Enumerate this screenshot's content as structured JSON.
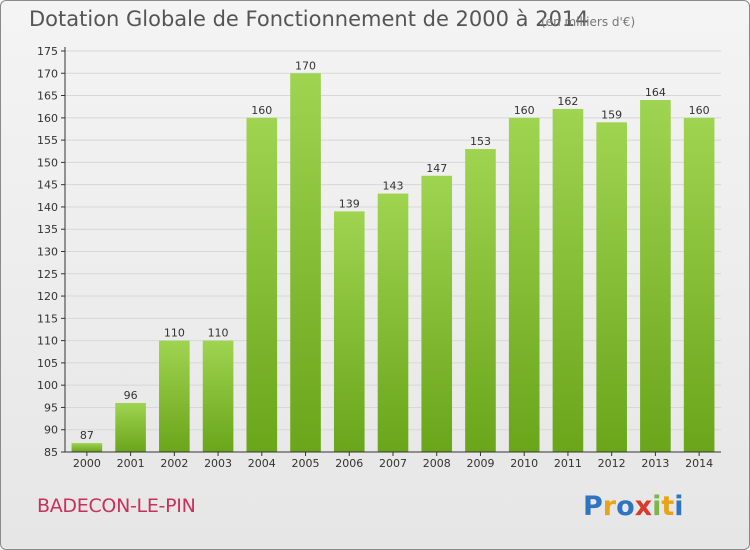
{
  "header": {
    "title": "Dotation Globale de Fonctionnement de 2000 à 2014",
    "subtitle": "(en milliers d'€)"
  },
  "footer": {
    "commune": "BADECON-LE-PIN",
    "logo_text": "Proxiti"
  },
  "colors": {
    "bar_light": "#9fd451",
    "bar_dark": "#6aa51a",
    "axis": "#333333",
    "grid": "#d7d7d7",
    "commune": "#c8315e"
  },
  "chart_data": {
    "type": "bar",
    "title": "Dotation Globale de Fonctionnement de 2000 à 2014",
    "subtitle": "(en milliers d'€)",
    "categories": [
      "2000",
      "2001",
      "2002",
      "2003",
      "2004",
      "2005",
      "2006",
      "2007",
      "2008",
      "2009",
      "2010",
      "2011",
      "2012",
      "2013",
      "2014"
    ],
    "values": [
      87,
      96,
      110,
      110,
      160,
      170,
      139,
      143,
      147,
      153,
      160,
      162,
      159,
      164,
      160
    ],
    "ylim": [
      85,
      175
    ],
    "ytick_step": 5,
    "grid": true,
    "legend": "none",
    "xlabel": "",
    "ylabel": ""
  }
}
